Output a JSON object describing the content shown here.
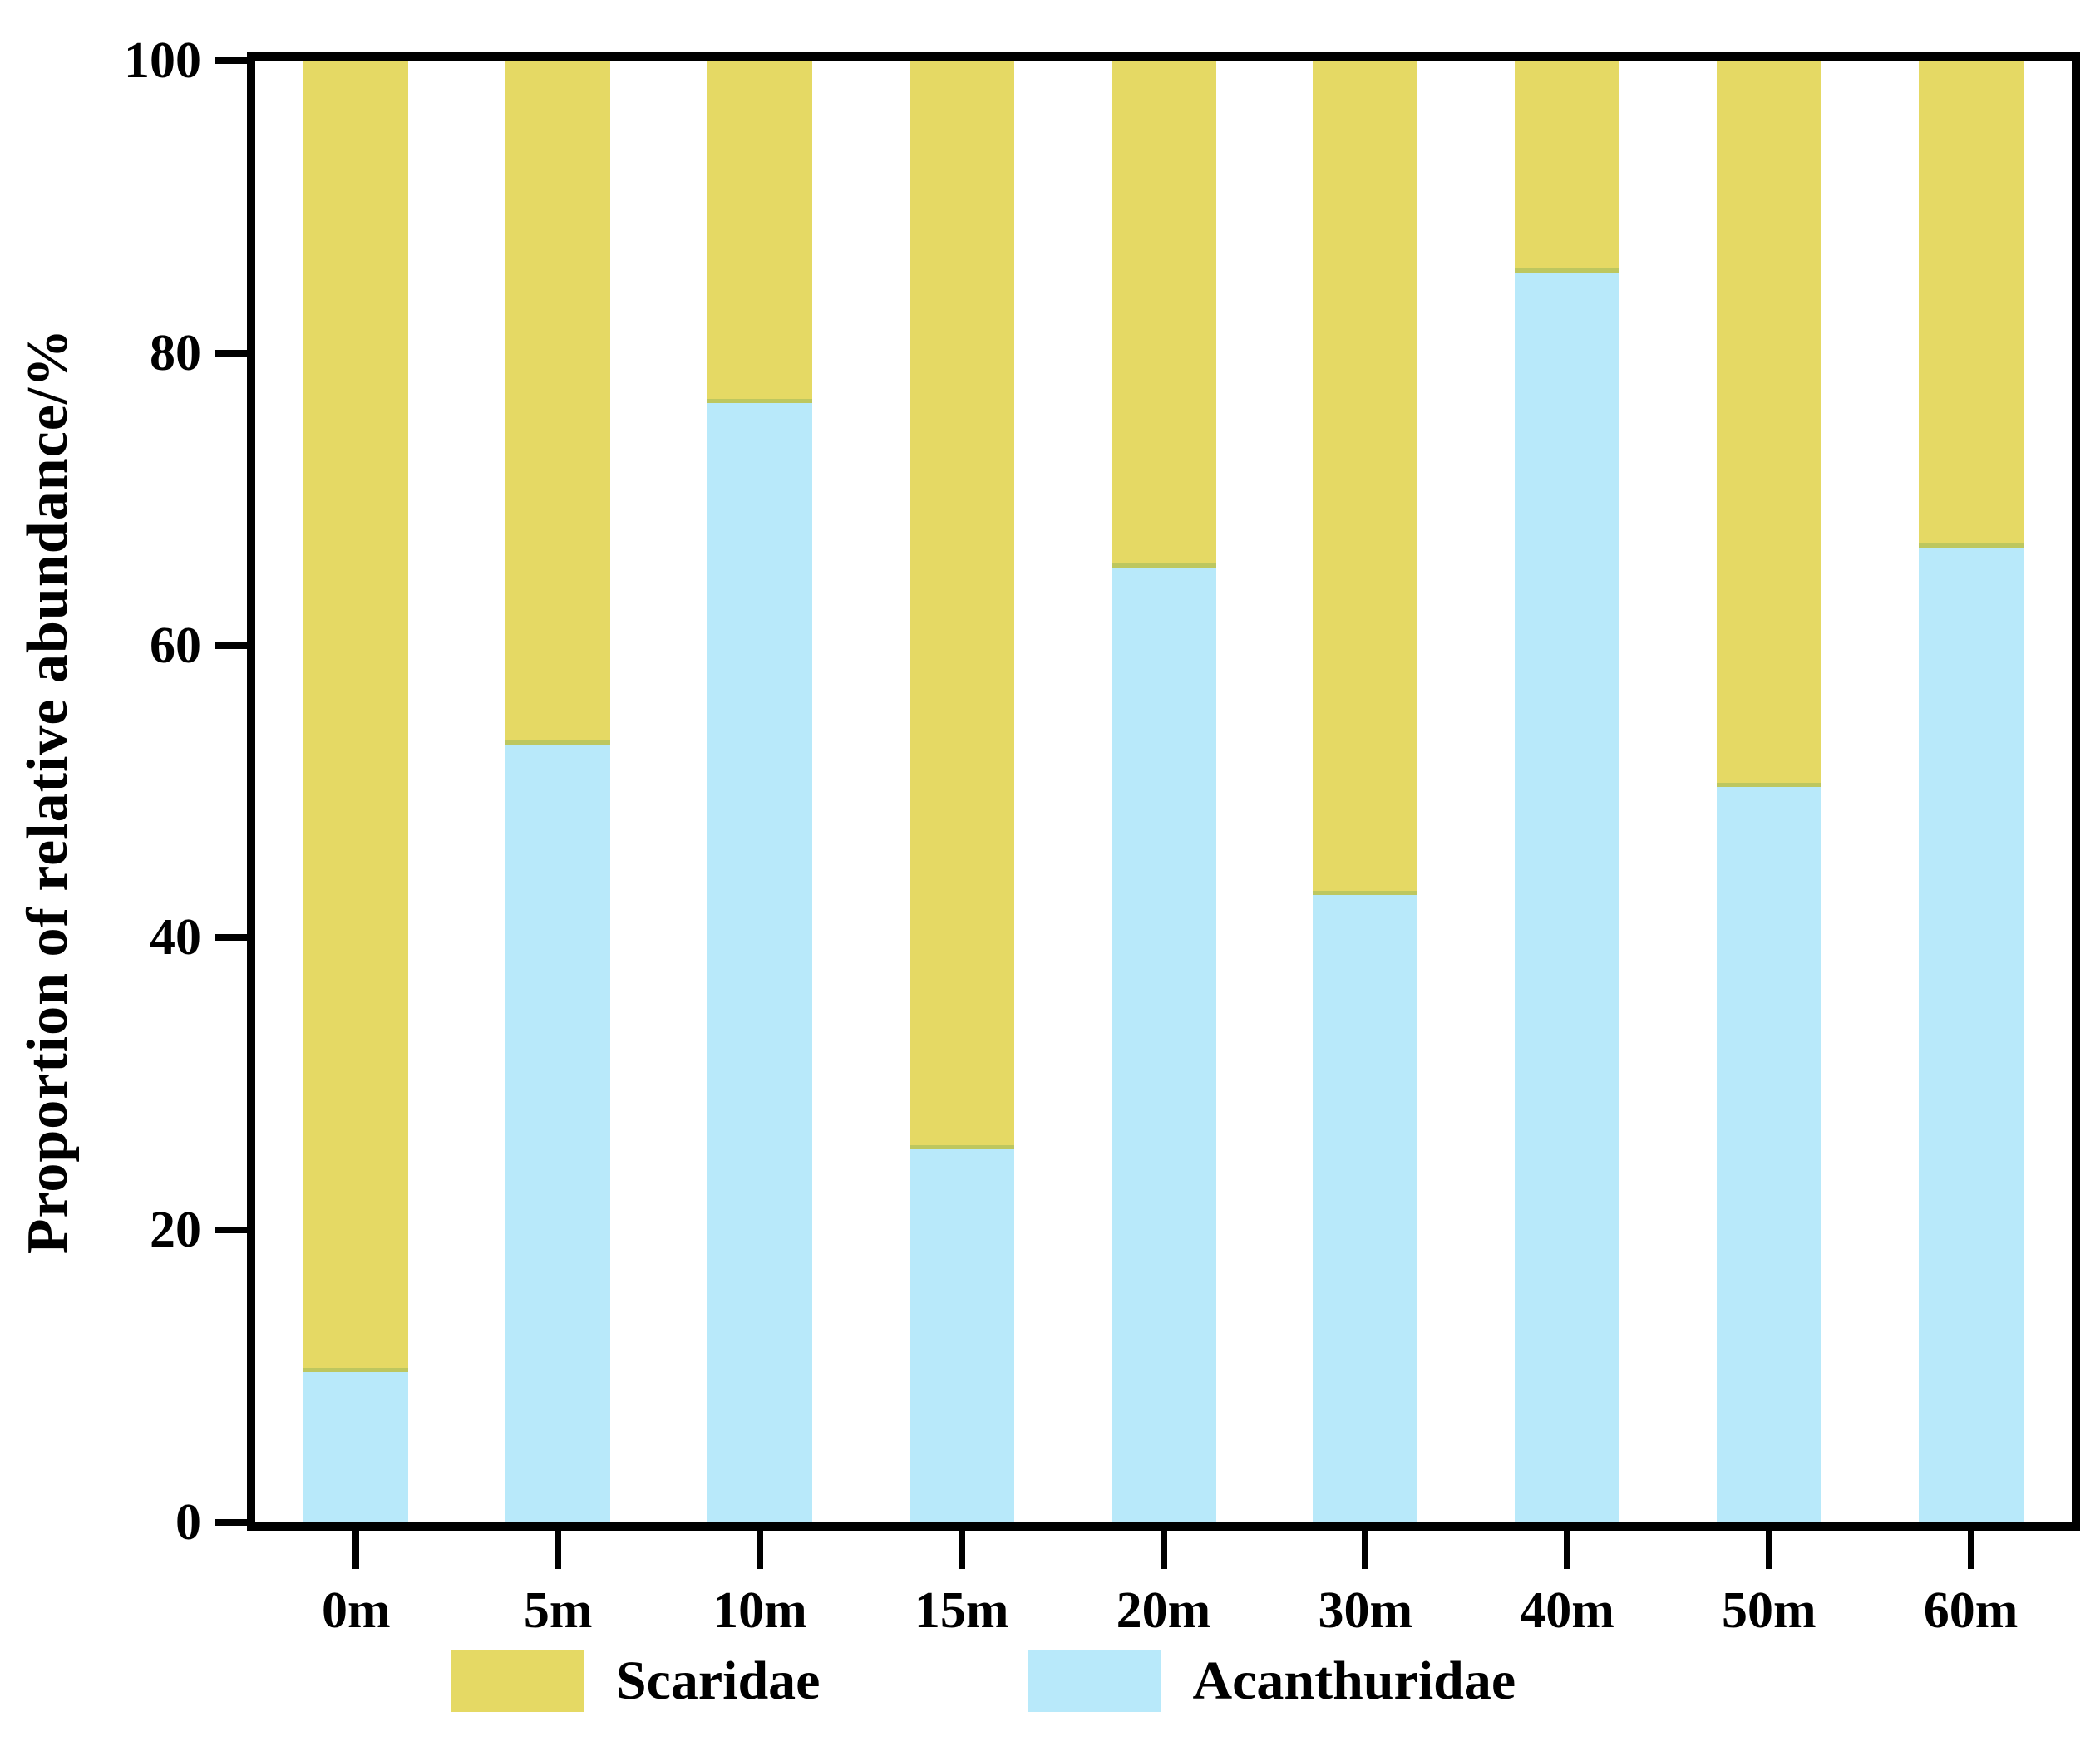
{
  "figure": {
    "background": "#ffffff",
    "axis_color": "#000000",
    "text_color": "#000000"
  },
  "chart_data": {
    "type": "bar",
    "stacked": true,
    "orientation": "vertical",
    "title": "",
    "xlabel": "",
    "ylabel": "Proportion of relative abundance/%",
    "ylim": [
      0,
      100
    ],
    "yticks": [
      0,
      20,
      40,
      60,
      80,
      100
    ],
    "grid": false,
    "legend_position": "bottom",
    "categories": [
      "0m",
      "5m",
      "10m",
      "15m",
      "20m",
      "30m",
      "40m",
      "50m",
      "60m"
    ],
    "series": [
      {
        "name": "Acanthuridae",
        "color": "#b8e9fa",
        "stack_order": "bottom",
        "values": [
          10.3,
          53.2,
          76.6,
          25.5,
          65.3,
          42.9,
          85.5,
          50.3,
          66.7
        ]
      },
      {
        "name": "Scaridae",
        "color": "#e5d964",
        "edge_color": "#bdc75f",
        "stack_order": "top",
        "values": [
          89.7,
          46.8,
          23.4,
          74.5,
          34.7,
          57.1,
          14.5,
          49.7,
          33.3
        ]
      }
    ],
    "legend_items": [
      {
        "label": "Scaridae",
        "color": "#e5d964"
      },
      {
        "label": "Acanthuridae",
        "color": "#b8e9fa"
      }
    ]
  }
}
